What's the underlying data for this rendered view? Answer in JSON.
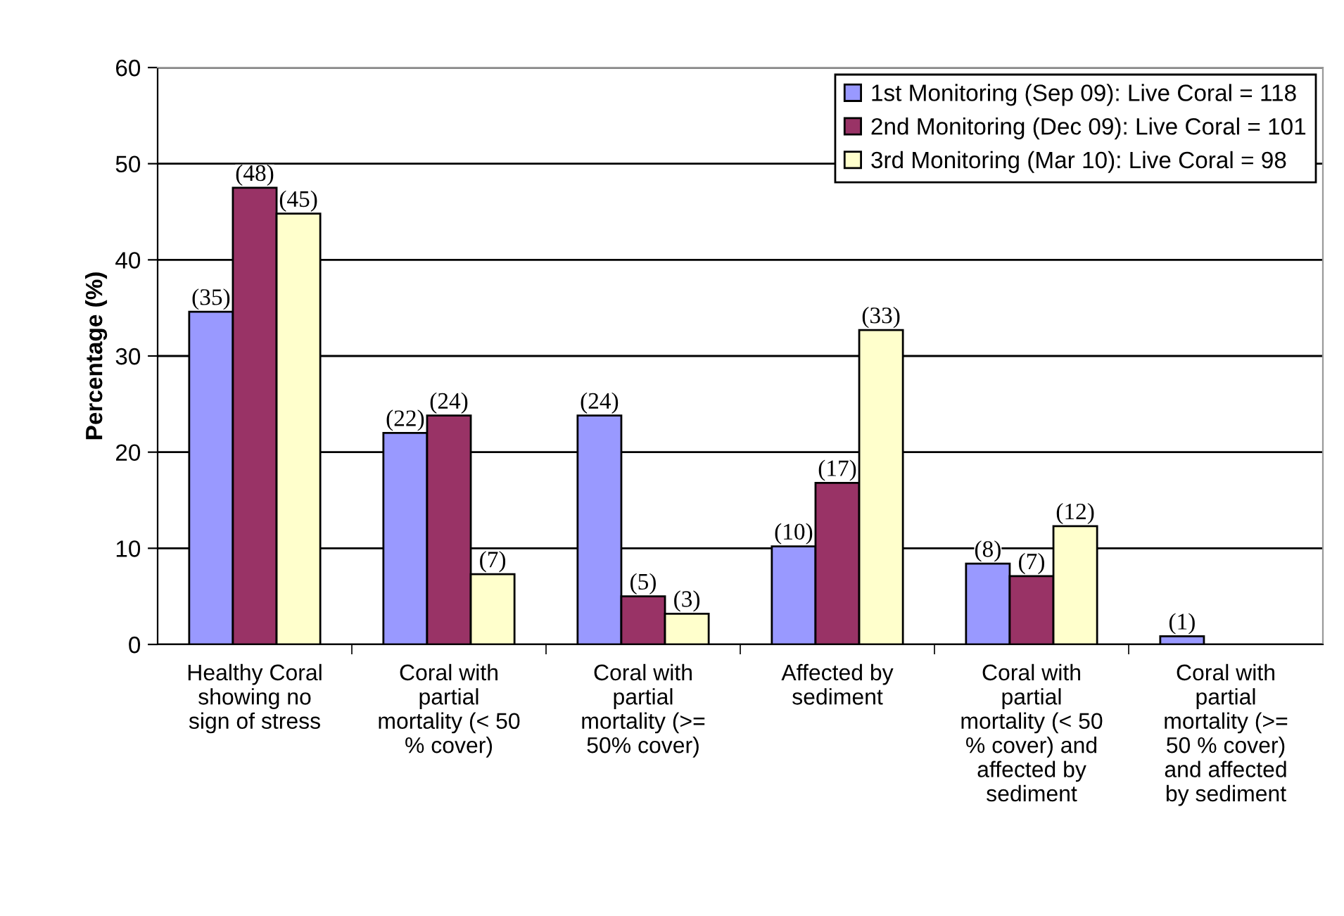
{
  "chart_data": {
    "type": "bar",
    "ylabel": "Percentage (%)",
    "categories": [
      "Healthy Coral\nshowing no\nsign of stress",
      "Coral with\npartial\nmortality (< 50\n% cover)",
      "Coral with\npartial\nmortality (>=\n50% cover)",
      "Affected by\nsediment",
      "Coral with\npartial\nmortality (< 50\n% cover) and\naffected by\nsediment",
      "Coral with\npartial\nmortality (>=\n50 % cover)\nand affected\nby sediment"
    ],
    "series": [
      {
        "name": "1st Monitoring (Sep 09): Live Coral = 118",
        "color": "#9999ff",
        "values": [
          34.6,
          22.0,
          23.8,
          10.2,
          8.4,
          0.85
        ],
        "value_labels": [
          "(35)",
          "(22)",
          "(24)",
          "(10)",
          "(8)",
          "(1)"
        ]
      },
      {
        "name": "2nd Monitoring (Dec 09): Live Coral = 101",
        "color": "#993366",
        "values": [
          47.5,
          23.8,
          5.0,
          16.8,
          7.1,
          null
        ],
        "value_labels": [
          "(48)",
          "(24)",
          "(5)",
          "(17)",
          "(7)",
          null
        ]
      },
      {
        "name": "3rd Monitoring (Mar 10): Live Coral = 98",
        "color": "#ffffcc",
        "values": [
          44.8,
          7.3,
          3.2,
          32.7,
          12.3,
          null
        ],
        "value_labels": [
          "(45)",
          "(7)",
          "(3)",
          "(33)",
          "(12)",
          null
        ]
      }
    ],
    "ylim": [
      0,
      60
    ],
    "yticks": [
      0,
      10,
      20,
      30,
      40,
      50,
      60
    ],
    "grid": "y",
    "legend": "top right"
  }
}
